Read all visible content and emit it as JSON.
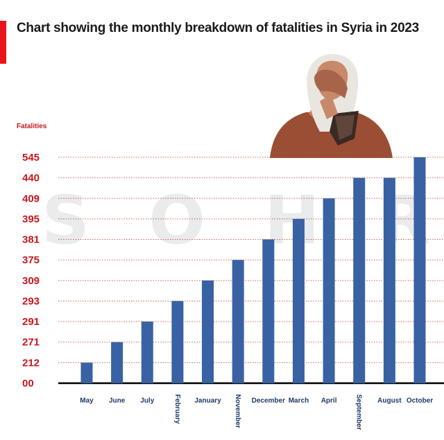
{
  "header": {
    "title": "Chart showing the monthly breakdown of fatalities in Syria in 2023",
    "watermark_letters": [
      "S",
      "O",
      "H",
      "R"
    ]
  },
  "colors": {
    "accent": "#e8141c",
    "bar": "#3862a3",
    "tick_y": "#c8161d",
    "tick_x": "#1f3a68",
    "grid": "#c0392b"
  },
  "chart_data": {
    "type": "bar",
    "title": "Chart showing the monthly breakdown of fatalities in Syria in 2023",
    "ylabel": "Fatalities",
    "xlabel": "",
    "categories": [
      "May",
      "June",
      "July",
      "February",
      "January",
      "November",
      "December",
      "March",
      "April",
      "September",
      "August",
      "October"
    ],
    "values": [
      212,
      271,
      291,
      293,
      309,
      375,
      381,
      395,
      409,
      440,
      440,
      545
    ],
    "y_tick_labels": [
      "00",
      "212",
      "271",
      "291",
      "293",
      "309",
      "375",
      "381",
      "395",
      "409",
      "440",
      "545"
    ],
    "y_axis_scale": "categorical-rank",
    "grid": true,
    "grid_style": "dotted",
    "rotated_x_labels": [
      "February",
      "November",
      "September"
    ]
  }
}
